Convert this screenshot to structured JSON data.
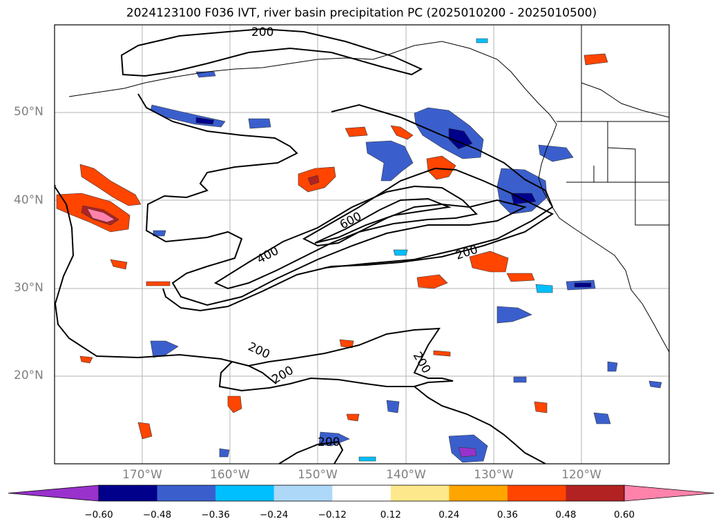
{
  "title": "2024123100 F036 IVT, river basin precipitation PC (2025010200 - 2025010500)",
  "map": {
    "lon_range": [
      -180,
      -110
    ],
    "lat_range": [
      10,
      60
    ],
    "lat_ticks": [
      "20°N",
      "30°N",
      "40°N",
      "50°N"
    ],
    "lon_ticks": [
      "170°W",
      "160°W",
      "150°W",
      "140°W",
      "130°W",
      "120°W"
    ],
    "grid": true,
    "ivt_contours": {
      "levels_labeled": [
        "200",
        "200",
        "200",
        "200",
        "200",
        "400",
        "600"
      ]
    }
  },
  "colorbar": {
    "orientation": "horizontal",
    "extend": "both",
    "ticks": [
      "−0.60",
      "−0.48",
      "−0.36",
      "−0.24",
      "−0.12",
      "0.12",
      "0.24",
      "0.36",
      "0.48",
      "0.60"
    ],
    "colors": [
      "#9932cc",
      "#00008b",
      "#3a5fcd",
      "#00bfff",
      "#add8f7",
      "#ffffff",
      "#fde98b",
      "#ffa500",
      "#ff4500",
      "#b22222",
      "#ff82ab"
    ]
  }
}
